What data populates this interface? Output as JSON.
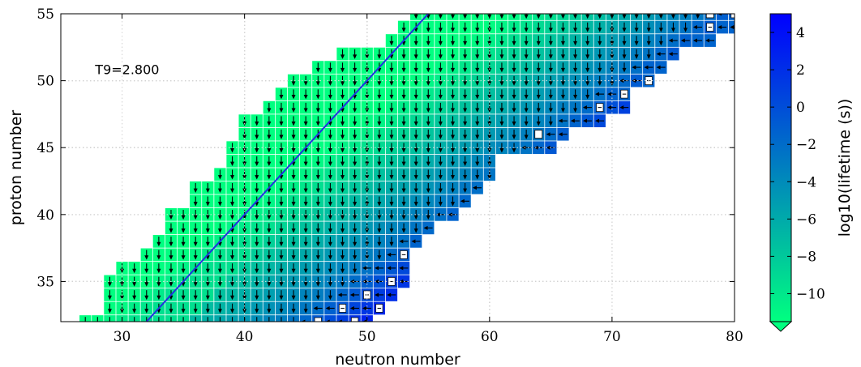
{
  "chart_data": {
    "type": "heatmap",
    "title": "",
    "xlabel": "neutron number",
    "ylabel": "proton number",
    "xlim": [
      25,
      80
    ],
    "ylim": [
      32,
      55
    ],
    "xticks": [
      30,
      40,
      50,
      60,
      70,
      80
    ],
    "yticks": [
      35,
      40,
      45,
      50,
      55
    ],
    "grid": true,
    "annotation": "T9=2.800",
    "colorbar": {
      "label": "log10(lifetime (s))",
      "range": [
        -11.5,
        5
      ],
      "ticks": [
        4,
        2,
        0,
        -2,
        -4,
        -6,
        -8,
        -10
      ],
      "tick_labels": [
        "4",
        "2",
        "0",
        "−2",
        "−4",
        "−6",
        "−8",
        "−10"
      ],
      "colors": [
        "#00ff80",
        "#0000ff"
      ]
    },
    "n_eq_z_line": {
      "x": [
        32,
        55
      ],
      "y": [
        32,
        55
      ]
    },
    "stable_markers": [
      {
        "n": 64,
        "z": 46
      },
      {
        "n": 78,
        "z": 55
      }
    ],
    "rows": [
      {
        "z": 32,
        "n_min": 27,
        "n_max": 50
      },
      {
        "z": 33,
        "n_min": 29,
        "n_max": 51
      },
      {
        "z": 34,
        "n_min": 29,
        "n_max": 52
      },
      {
        "z": 35,
        "n_min": 29,
        "n_max": 53
      },
      {
        "z": 36,
        "n_min": 30,
        "n_max": 53
      },
      {
        "z": 37,
        "n_min": 32,
        "n_max": 53
      },
      {
        "z": 38,
        "n_min": 33,
        "n_max": 54
      },
      {
        "z": 39,
        "n_min": 34,
        "n_max": 55
      },
      {
        "z": 40,
        "n_min": 34,
        "n_max": 57
      },
      {
        "z": 41,
        "n_min": 36,
        "n_max": 58
      },
      {
        "z": 42,
        "n_min": 36,
        "n_max": 59
      },
      {
        "z": 43,
        "n_min": 38,
        "n_max": 60
      },
      {
        "z": 44,
        "n_min": 39,
        "n_max": 60
      },
      {
        "z": 45,
        "n_min": 39,
        "n_max": 65
      },
      {
        "z": 46,
        "n_min": 40,
        "n_max": 66
      },
      {
        "z": 47,
        "n_min": 40,
        "n_max": 69
      },
      {
        "z": 48,
        "n_min": 42,
        "n_max": 71
      },
      {
        "z": 49,
        "n_min": 43,
        "n_max": 71
      },
      {
        "z": 50,
        "n_min": 44,
        "n_max": 73
      },
      {
        "z": 51,
        "n_min": 46,
        "n_max": 74
      },
      {
        "z": 52,
        "n_min": 48,
        "n_max": 75
      },
      {
        "z": 53,
        "n_min": 52,
        "n_max": 78
      },
      {
        "z": 54,
        "n_min": 53,
        "n_max": 80
      },
      {
        "z": 55,
        "n_min": 54,
        "n_max": 80
      }
    ]
  }
}
